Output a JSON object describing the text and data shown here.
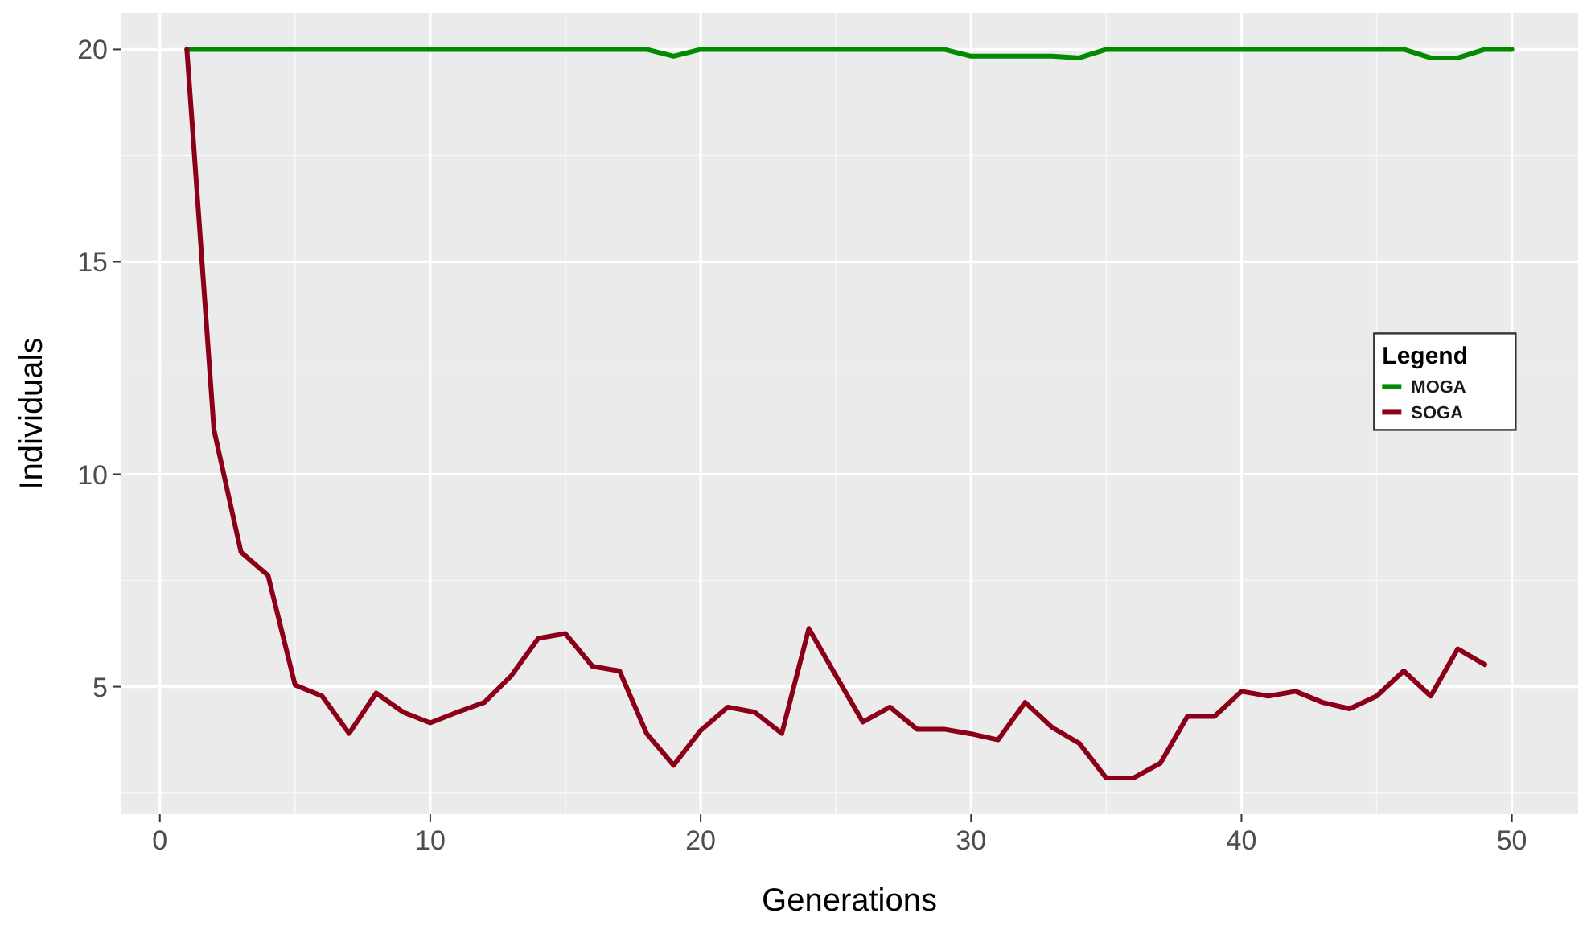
{
  "chart_data": {
    "type": "line",
    "xlabel": "Generations",
    "ylabel": "Individuals",
    "legend_title": "Legend",
    "xlim": [
      -1.45,
      52.45
    ],
    "ylim": [
      2,
      20.86
    ],
    "xticks": [
      0,
      10,
      20,
      30,
      40,
      50
    ],
    "yticks": [
      5,
      10,
      15,
      20
    ],
    "grid": true,
    "legend": "right",
    "line_style": "solid",
    "marker": "none",
    "series": [
      {
        "name": "MOGA",
        "color": "#008b00",
        "x": [
          1,
          2,
          3,
          4,
          5,
          6,
          7,
          8,
          9,
          10,
          11,
          12,
          13,
          14,
          15,
          16,
          17,
          18,
          19,
          20,
          21,
          22,
          23,
          24,
          25,
          26,
          27,
          28,
          29,
          30,
          31,
          32,
          33,
          34,
          35,
          36,
          37,
          38,
          39,
          40,
          41,
          42,
          43,
          44,
          45,
          46,
          47,
          48,
          49,
          50
        ],
        "values": [
          20,
          20,
          20,
          20,
          20,
          20,
          20,
          20,
          20,
          20,
          20,
          20,
          20,
          20,
          20,
          20,
          20,
          20,
          19.84,
          20,
          20,
          20,
          20,
          20,
          20,
          20,
          20,
          20,
          20,
          19.84,
          19.84,
          19.84,
          19.84,
          19.8,
          20,
          20,
          20,
          20,
          20,
          20,
          20,
          20,
          20,
          20,
          20,
          20,
          19.8,
          19.8,
          20,
          20
        ]
      },
      {
        "name": "SOGA",
        "color": "#8b0018",
        "x": [
          1,
          2,
          3,
          4,
          5,
          6,
          7,
          8,
          9,
          10,
          11,
          12,
          13,
          14,
          15,
          16,
          17,
          18,
          19,
          20,
          21,
          22,
          23,
          24,
          25,
          26,
          27,
          28,
          29,
          30,
          31,
          32,
          33,
          34,
          35,
          36,
          37,
          38,
          39,
          40,
          41,
          42,
          43,
          44,
          45,
          46,
          47,
          48,
          49
        ],
        "values": [
          20,
          11.05,
          8.17,
          7.62,
          5.04,
          4.78,
          3.9,
          4.85,
          4.4,
          4.15,
          4.4,
          4.63,
          5.26,
          6.14,
          6.25,
          5.48,
          5.37,
          3.9,
          3.15,
          3.97,
          4.52,
          4.4,
          3.9,
          6.37,
          5.26,
          4.17,
          4.52,
          4.0,
          4.0,
          3.89,
          3.75,
          4.63,
          4.04,
          3.67,
          2.85,
          2.85,
          3.2,
          4.3,
          4.3,
          4.89,
          4.78,
          4.89,
          4.63,
          4.48,
          4.78,
          5.37,
          4.78,
          5.89,
          5.52
        ]
      }
    ]
  }
}
